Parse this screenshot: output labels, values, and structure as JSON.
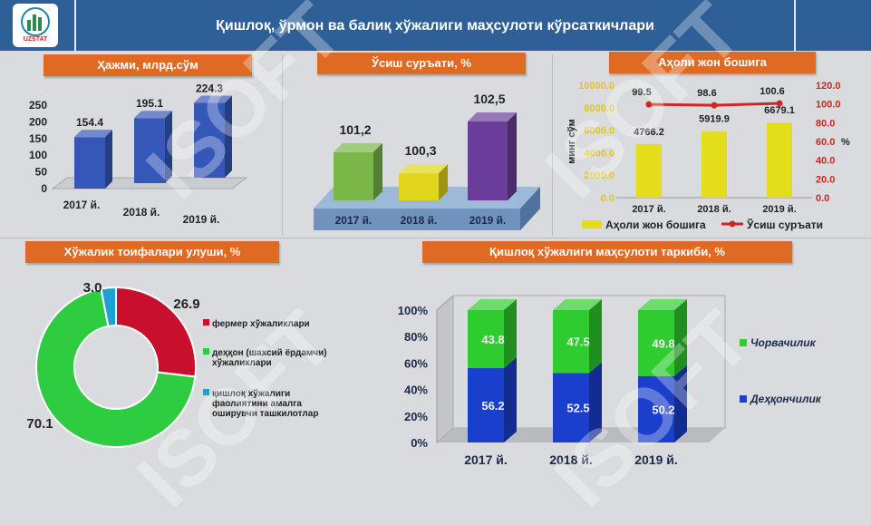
{
  "header": {
    "title": "Қишлоқ, ўрмон ва балиқ хўжалиги маҳсулоти кўрсаткичлари",
    "logo_text": "UZSTAT"
  },
  "panels": {
    "volume": "Ҳажми, млрд.сўм",
    "growth": "Ўсиш суръати, %",
    "per_capita": "Аҳоли жон бошига",
    "shares": "Хўжалик тоифалари улуши, %",
    "structure": "Қишлоқ хўжалиги маҳсулоти таркиби, %"
  },
  "watermark": "ISOFT",
  "chart_data": [
    {
      "type": "bar",
      "title": "Ҳажми, млрд.сўм",
      "categories": [
        "2017 й.",
        "2018 й.",
        "2019 й."
      ],
      "values": [
        154.4,
        195.1,
        224.3
      ],
      "y_ticks": [
        "0",
        "50",
        "100",
        "150",
        "200",
        "250"
      ],
      "ylim": [
        0,
        250
      ],
      "color": "#3558b8"
    },
    {
      "type": "bar",
      "title": "Ўсиш суръати, %",
      "categories": [
        "2017 й.",
        "2018 й.",
        "2019 й."
      ],
      "values": [
        101.2,
        100.3,
        102.5
      ],
      "value_labels": [
        "101,2",
        "100,3",
        "102,5"
      ],
      "colors": [
        "#7ab648",
        "#e0d51a",
        "#6a3d9a"
      ]
    },
    {
      "type": "bar",
      "title": "Аҳоли жон бошига",
      "categories": [
        "2017 й.",
        "2018 й.",
        "2019 й."
      ],
      "ylabel": "минг сўм",
      "y2label": "%",
      "ylim": [
        0,
        10000
      ],
      "y2lim": [
        0,
        120
      ],
      "y_ticks": [
        "0.0",
        "2000.0",
        "4000.0",
        "6000.0",
        "8000.0",
        "10000.0"
      ],
      "y2_ticks": [
        "0.0",
        "20.0",
        "40.0",
        "60.0",
        "80.0",
        "100.0",
        "120.0"
      ],
      "series": [
        {
          "name": "Аҳоли жон бошига",
          "kind": "bar",
          "values": [
            4766.2,
            5919.9,
            6679.1
          ],
          "labels": [
            "4766.2",
            "5919.9",
            "6679.1"
          ],
          "color": "#e4dd1b"
        },
        {
          "name": "Ўсиш суръати",
          "kind": "line",
          "axis": "secondary",
          "values": [
            99.5,
            98.6,
            100.6
          ],
          "labels": [
            "99.5",
            "98.6",
            "100.6"
          ],
          "color": "#d0261f"
        }
      ],
      "legend": "bottom"
    },
    {
      "type": "pie",
      "title": "Хўжалик тоифалари улуши, %",
      "donut": true,
      "slices": [
        {
          "label": "фермер хўжаликлари",
          "value": 26.9,
          "display": "26.9",
          "color": "#c8102e"
        },
        {
          "label": "деҳқон (шахсий ёрдамчи) хўжаликлари",
          "value": 70.1,
          "display": "70.1",
          "color": "#2ecc40"
        },
        {
          "label": "қишлоқ хўжалиги фаолиятини амалга оширувчи ташкилотлар",
          "value": 3.0,
          "display": "3.0",
          "color": "#1e9fd6"
        }
      ],
      "legend": "right"
    },
    {
      "type": "bar",
      "stacked": true,
      "title": "Қишлоқ хўжалиги маҳсулоти таркиби, %",
      "categories": [
        "2017 й.",
        "2018 й.",
        "2019 й."
      ],
      "y_ticks": [
        "0%",
        "20%",
        "40%",
        "60%",
        "80%",
        "100%"
      ],
      "ylim": [
        0,
        100
      ],
      "series": [
        {
          "name": "Деҳқончилик",
          "values": [
            56.2,
            52.5,
            50.2
          ],
          "color": "#1a3fcc"
        },
        {
          "name": "Чорвачилик",
          "values": [
            43.8,
            47.5,
            49.8
          ],
          "color": "#2ecc2e"
        }
      ],
      "legend": "right"
    }
  ]
}
